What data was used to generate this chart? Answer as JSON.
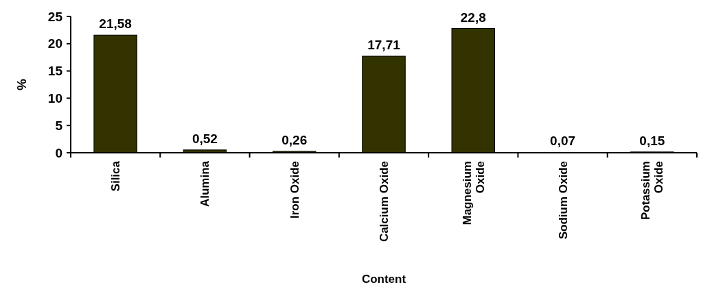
{
  "chart_data": {
    "type": "bar",
    "xlabel": "Content",
    "ylabel": "%",
    "categories": [
      "Silica",
      "Alumina",
      "Iron Oxide",
      "Calcium Oxide",
      "Magnesium Oxide",
      "Sodium Oxide",
      "Potassium Oxide"
    ],
    "values": [
      21.58,
      0.52,
      0.26,
      17.71,
      22.8,
      0.07,
      0.15
    ],
    "value_labels": [
      "21,58",
      "0,52",
      "0,26",
      "17,71",
      "22,8",
      "0,07",
      "0,15"
    ],
    "color": "#333300",
    "ylim": [
      0,
      25
    ],
    "yticks": [
      0,
      5,
      10,
      15,
      20,
      25
    ],
    "grid": false
  }
}
